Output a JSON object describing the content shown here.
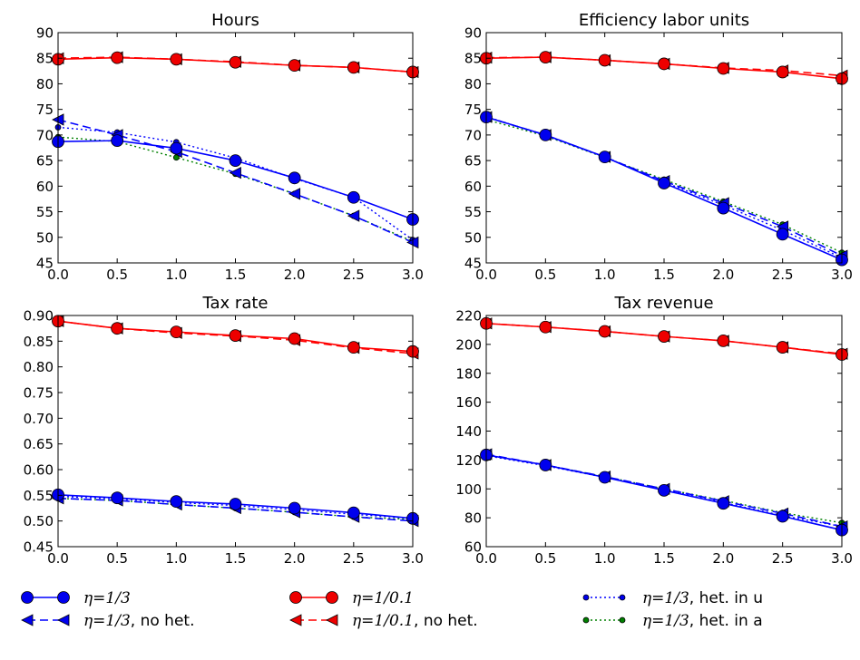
{
  "chart_data": [
    {
      "type": "line",
      "title": "Hours",
      "x": [
        0,
        0.5,
        1,
        1.5,
        2,
        2.5,
        3
      ],
      "xlim": [
        0,
        3
      ],
      "ylim": [
        45,
        90
      ],
      "xticks": [
        "0.0",
        "0.5",
        "1.0",
        "1.5",
        "2.0",
        "2.5",
        "3.0"
      ],
      "yticks": [
        "45",
        "50",
        "55",
        "60",
        "65",
        "70",
        "75",
        "80",
        "85",
        "90"
      ],
      "series": [
        {
          "name": "η=1/3",
          "values": [
            68.7,
            68.9,
            67.4,
            65.0,
            61.6,
            57.8,
            53.5
          ]
        },
        {
          "name": "η=1/3, no het.",
          "values": [
            73.0,
            70.0,
            66.7,
            62.6,
            58.5,
            54.2,
            49.0
          ]
        },
        {
          "name": "η=1/0.1",
          "values": [
            84.8,
            85.1,
            84.8,
            84.2,
            83.6,
            83.2,
            82.3
          ]
        },
        {
          "name": "η=1/0.1, no het.",
          "values": [
            85.0,
            85.2,
            84.8,
            84.3,
            83.6,
            83.2,
            82.3
          ]
        },
        {
          "name": "η=1/3, het. in u",
          "values": [
            71.5,
            70.5,
            68.6,
            65.5,
            61.5,
            57.8,
            49.5
          ]
        },
        {
          "name": "η=1/3, het. in a",
          "values": [
            69.6,
            68.7,
            65.6,
            62.4,
            58.5,
            54.2,
            49.2
          ]
        }
      ]
    },
    {
      "type": "line",
      "title": "Efficiency labor units",
      "x": [
        0,
        0.5,
        1,
        1.5,
        2,
        2.5,
        3
      ],
      "xlim": [
        0,
        3
      ],
      "ylim": [
        45,
        90
      ],
      "xticks": [
        "0.0",
        "0.5",
        "1.0",
        "1.5",
        "2.0",
        "2.5",
        "3.0"
      ],
      "yticks": [
        "45",
        "50",
        "55",
        "60",
        "65",
        "70",
        "75",
        "80",
        "85",
        "90"
      ],
      "series": [
        {
          "name": "η=1/3",
          "values": [
            73.5,
            70.0,
            65.7,
            60.6,
            55.7,
            50.6,
            45.6
          ]
        },
        {
          "name": "η=1/3, no het.",
          "values": [
            73.5,
            70.0,
            65.7,
            61.0,
            56.7,
            52.1,
            46.4
          ]
        },
        {
          "name": "η=1/0.1",
          "values": [
            85.0,
            85.2,
            84.6,
            83.9,
            83.0,
            82.3,
            81.0
          ]
        },
        {
          "name": "η=1/0.1, no het.",
          "values": [
            85.1,
            85.2,
            84.6,
            83.9,
            83.1,
            82.6,
            81.6
          ]
        },
        {
          "name": "η=1/3, het. in u",
          "values": [
            73.6,
            69.9,
            65.7,
            60.8,
            56.3,
            51.4,
            46.0
          ]
        },
        {
          "name": "η=1/3, het. in a",
          "values": [
            73.0,
            69.8,
            65.6,
            61.3,
            57.0,
            52.5,
            47.0
          ]
        }
      ]
    },
    {
      "type": "line",
      "title": "Tax rate",
      "x": [
        0,
        0.5,
        1,
        1.5,
        2,
        2.5,
        3
      ],
      "xlim": [
        0,
        3
      ],
      "ylim": [
        0.45,
        0.9
      ],
      "xticks": [
        "0.0",
        "0.5",
        "1.0",
        "1.5",
        "2.0",
        "2.5",
        "3.0"
      ],
      "yticks": [
        "0.45",
        "0.50",
        "0.55",
        "0.60",
        "0.65",
        "0.70",
        "0.75",
        "0.80",
        "0.85",
        "0.90"
      ],
      "series": [
        {
          "name": "η=1/3",
          "values": [
            0.551,
            0.545,
            0.538,
            0.533,
            0.525,
            0.516,
            0.505
          ]
        },
        {
          "name": "η=1/3, no het.",
          "values": [
            0.544,
            0.54,
            0.532,
            0.525,
            0.517,
            0.508,
            0.5
          ]
        },
        {
          "name": "η=1/0.1",
          "values": [
            0.889,
            0.875,
            0.868,
            0.861,
            0.855,
            0.838,
            0.83
          ]
        },
        {
          "name": "η=1/0.1, no het.",
          "values": [
            0.889,
            0.875,
            0.866,
            0.86,
            0.852,
            0.837,
            0.826
          ]
        },
        {
          "name": "η=1/3, het. in u",
          "values": [
            0.548,
            0.543,
            0.536,
            0.53,
            0.522,
            0.513,
            0.505
          ]
        },
        {
          "name": "η=1/3, het. in a",
          "values": [
            0.544,
            0.54,
            0.532,
            0.525,
            0.517,
            0.508,
            0.503
          ]
        }
      ]
    },
    {
      "type": "line",
      "title": "Tax revenue",
      "x": [
        0,
        0.5,
        1,
        1.5,
        2,
        2.5,
        3
      ],
      "xlim": [
        0,
        3
      ],
      "ylim": [
        60,
        220
      ],
      "xticks": [
        "0.0",
        "0.5",
        "1.0",
        "1.5",
        "2.0",
        "2.5",
        "3.0"
      ],
      "yticks": [
        "60",
        "80",
        "100",
        "120",
        "140",
        "160",
        "180",
        "200",
        "220"
      ],
      "series": [
        {
          "name": "η=1/3",
          "values": [
            123.5,
            116.5,
            108.0,
            99.0,
            90.0,
            81.0,
            71.5
          ]
        },
        {
          "name": "η=1/3, no het.",
          "values": [
            124.0,
            116.5,
            108.5,
            100.0,
            91.5,
            83.0,
            74.0
          ]
        },
        {
          "name": "η=1/0.1",
          "values": [
            214.5,
            212.0,
            209.0,
            205.5,
            202.5,
            198.0,
            193.0
          ]
        },
        {
          "name": "η=1/0.1, no het.",
          "values": [
            214.5,
            212.0,
            209.0,
            205.5,
            202.5,
            198.0,
            193.5
          ]
        },
        {
          "name": "η=1/3, het. in u",
          "values": [
            123.0,
            116.0,
            108.0,
            99.5,
            90.5,
            81.5,
            74.0
          ]
        },
        {
          "name": "η=1/3, het. in a",
          "values": [
            123.0,
            116.5,
            108.5,
            100.0,
            92.0,
            83.5,
            76.5
          ]
        }
      ]
    }
  ],
  "legend": [
    {
      "math": "η=1/3",
      "rest": "",
      "color": "#0000ff",
      "style": "solid",
      "marker": "circle"
    },
    {
      "math": "η=1/3",
      "rest": ", no het.",
      "color": "#0000ff",
      "style": "dashed",
      "marker": "triangle-left"
    },
    {
      "math": "η=1/0.1",
      "rest": "",
      "color": "#ff0000",
      "style": "solid",
      "marker": "circle"
    },
    {
      "math": "η=1/0.1",
      "rest": ", no het.",
      "color": "#ff0000",
      "style": "dashed",
      "marker": "triangle-left"
    },
    {
      "math": "η=1/3",
      "rest": ", het. in u",
      "color": "#0000ff",
      "style": "dotted",
      "marker": "small-circle"
    },
    {
      "math": "η=1/3",
      "rest": ", het. in a",
      "color": "#008000",
      "style": "dotted",
      "marker": "small-circle"
    }
  ]
}
